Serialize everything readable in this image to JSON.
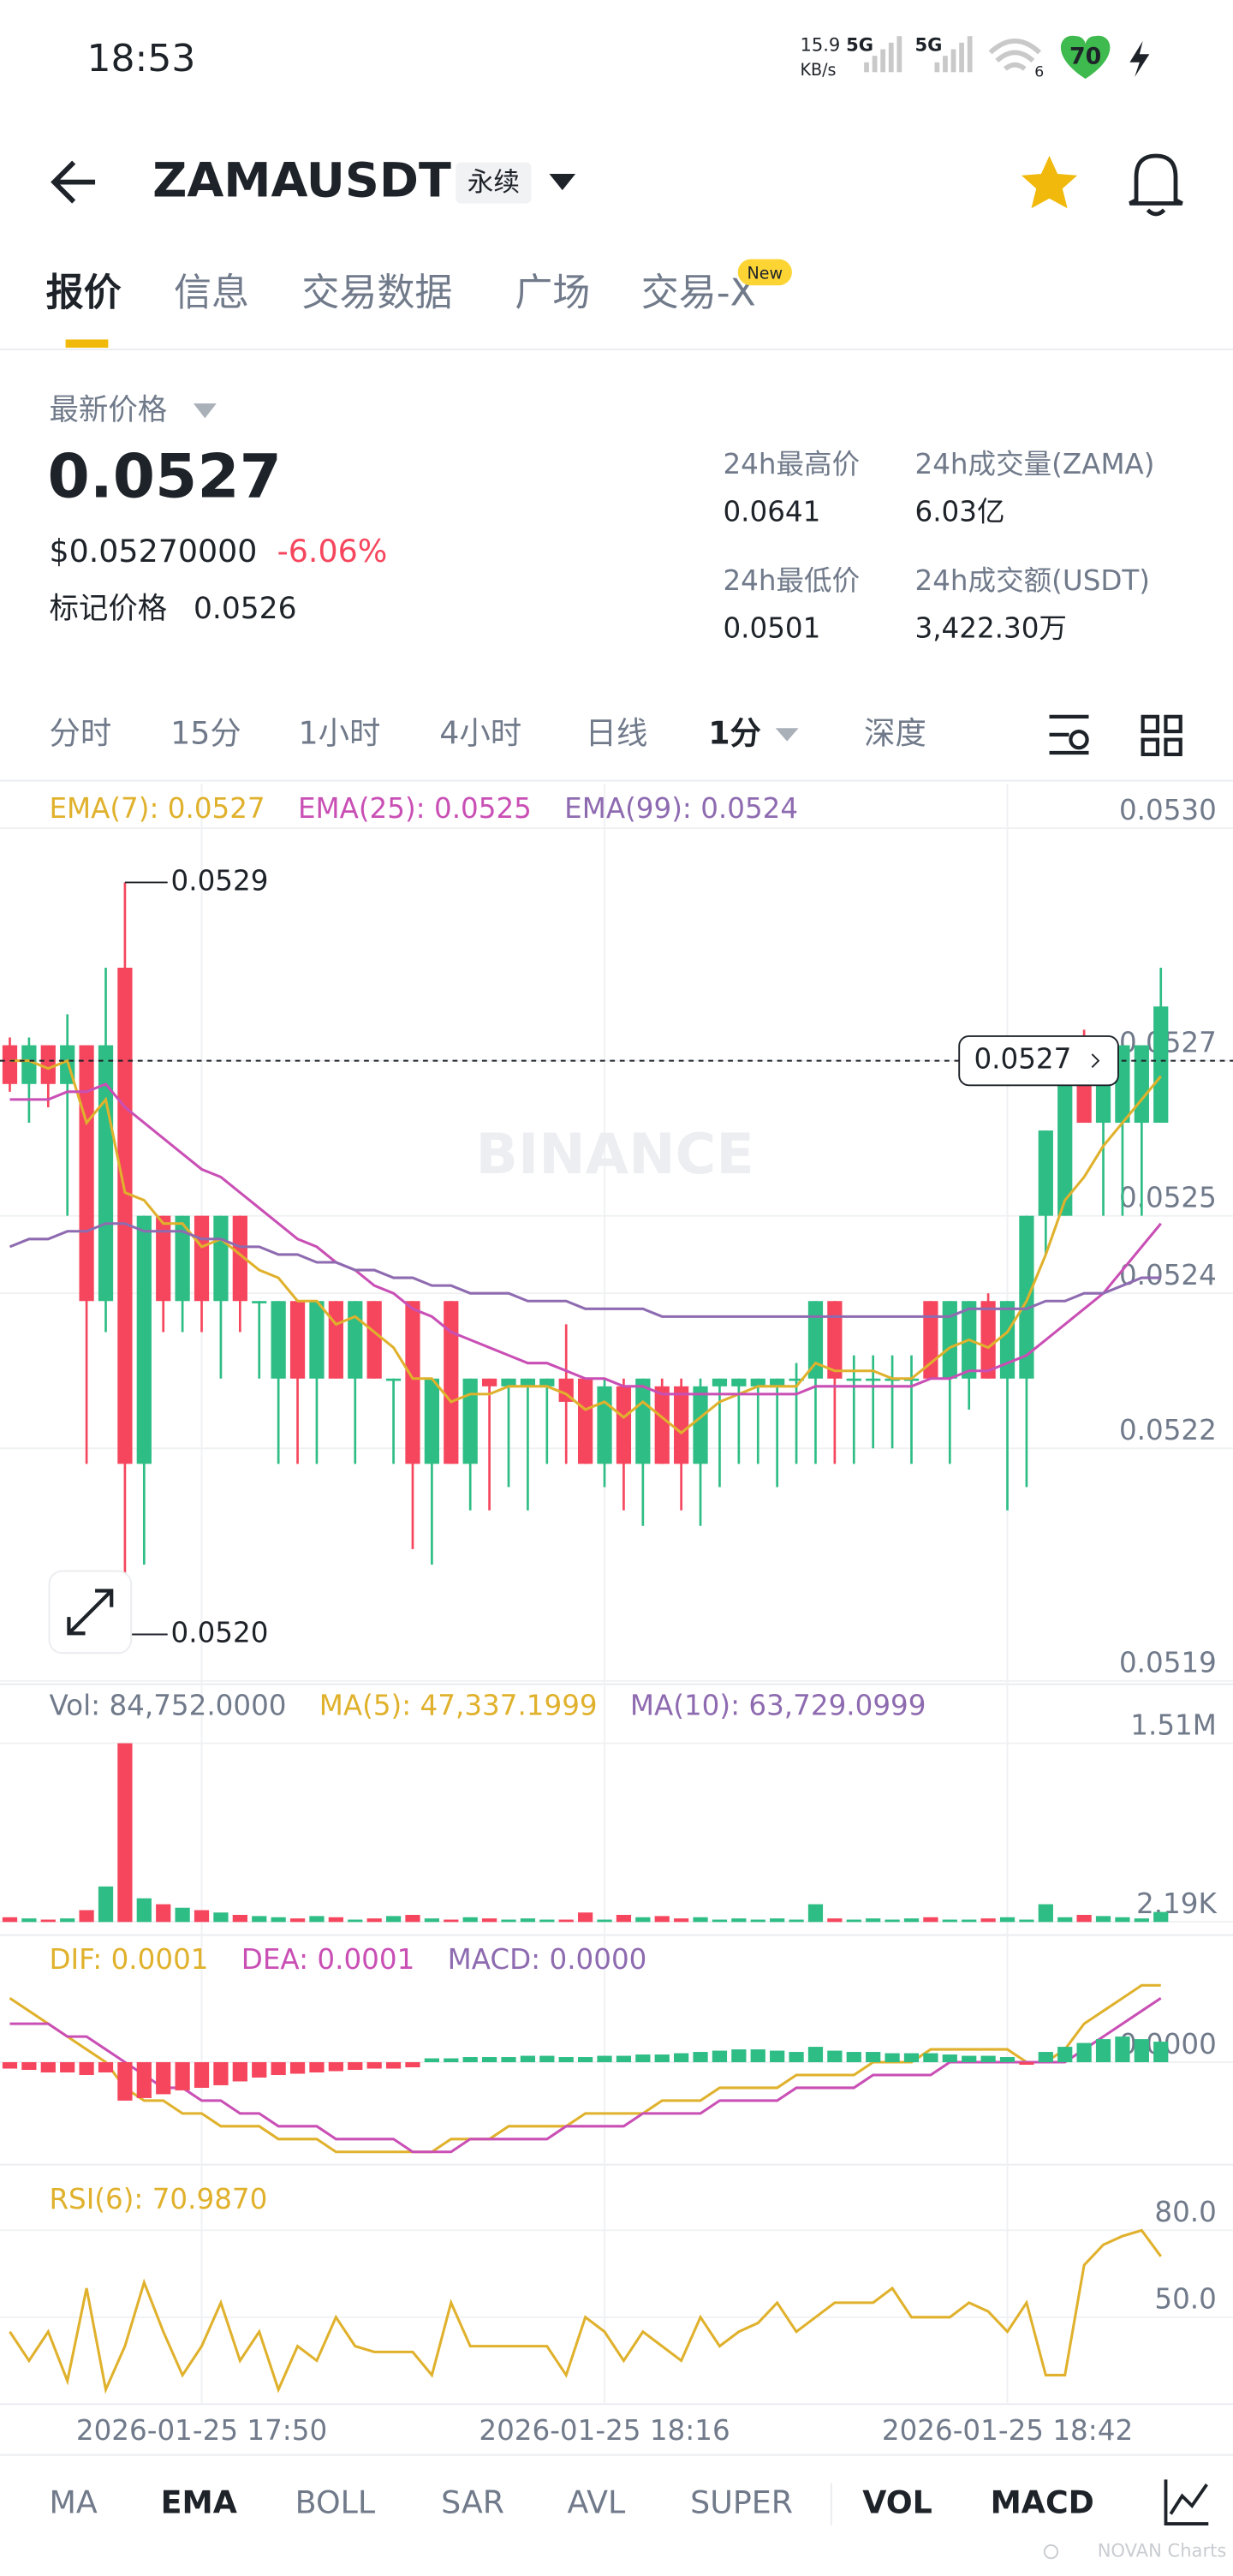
{
  "status_bar": {
    "time": "18:53",
    "net_speed": "15.9",
    "net_unit": "KB/s",
    "signal_1": "5G",
    "signal_2": "5G",
    "wifi": "6",
    "battery": "70"
  },
  "header": {
    "symbol": "ZAMAUSDT",
    "contract": "永续"
  },
  "tabs": [
    "报价",
    "信息",
    "交易数据",
    "广场",
    "交易-X"
  ],
  "tab_badge": "New",
  "price": {
    "label": "最新价格",
    "last": "0.0527",
    "usd": "$0.05270000",
    "change": "-6.06%",
    "mark_label": "标记价格",
    "mark": "0.0526"
  },
  "stats": [
    {
      "label": "24h最高价",
      "value": "0.0641"
    },
    {
      "label": "24h成交量(ZAMA)",
      "value": "6.03亿"
    },
    {
      "label": "24h最低价",
      "value": "0.0501"
    },
    {
      "label": "24h成交额(USDT)",
      "value": "3,422.30万"
    }
  ],
  "intervals": [
    "分时",
    "15分",
    "1小时",
    "4小时",
    "日线",
    "1分",
    "深度"
  ],
  "watermark": "BINANCE",
  "chart_data": [
    {
      "type": "candlestick",
      "up_color": "#2ebd85",
      "down_color": "#f6465d",
      "categories": [
        null,
        null,
        null,
        null,
        null,
        null,
        null,
        null,
        null,
        null,
        "2026-01-25 17:50",
        null,
        null,
        null,
        null,
        null,
        null,
        null,
        null,
        null,
        null,
        null,
        null,
        null,
        null,
        null,
        null,
        null,
        null,
        null,
        null,
        "2026-01-25 18:16",
        null,
        null,
        null,
        null,
        null,
        null,
        null,
        null,
        null,
        null,
        null,
        null,
        null,
        null,
        null,
        null,
        null,
        null,
        null,
        null,
        "2026-01-25 18:42",
        null,
        null,
        null,
        null,
        null,
        null,
        null,
        null
      ],
      "ohlc": [
        [
          0.05272,
          0.05273,
          0.05266,
          0.05267
        ],
        [
          0.05267,
          0.05273,
          0.05262,
          0.05272
        ],
        [
          0.05272,
          0.05272,
          0.05264,
          0.05267
        ],
        [
          0.05267,
          0.05276,
          0.0525,
          0.05272
        ],
        [
          0.05272,
          0.05272,
          0.05218,
          0.05239
        ],
        [
          0.05239,
          0.05282,
          0.05235,
          0.05272
        ],
        [
          0.05282,
          0.05293,
          0.05196,
          0.05218
        ],
        [
          0.05218,
          0.0525,
          0.05205,
          0.0525
        ],
        [
          0.0525,
          0.0525,
          0.05235,
          0.05239
        ],
        [
          0.05239,
          0.0525,
          0.05235,
          0.0525
        ],
        [
          0.0525,
          0.0525,
          0.05235,
          0.05239
        ],
        [
          0.05239,
          0.0525,
          0.05229,
          0.0525
        ],
        [
          0.0525,
          0.0525,
          0.05235,
          0.05239
        ],
        [
          0.05239,
          0.05239,
          0.05229,
          0.05239
        ],
        [
          0.05229,
          0.05239,
          0.05218,
          0.05239
        ],
        [
          0.05239,
          0.05239,
          0.05218,
          0.05229
        ],
        [
          0.05229,
          0.05239,
          0.05218,
          0.05239
        ],
        [
          0.05239,
          0.05239,
          0.05229,
          0.05229
        ],
        [
          0.05229,
          0.05239,
          0.05218,
          0.05239
        ],
        [
          0.05239,
          0.05239,
          0.05229,
          0.05229
        ],
        [
          0.05229,
          0.05229,
          0.05218,
          0.05229
        ],
        [
          0.05239,
          0.05239,
          0.05207,
          0.05218
        ],
        [
          0.05218,
          0.05229,
          0.05205,
          0.05229
        ],
        [
          0.05239,
          0.05239,
          0.05218,
          0.05218
        ],
        [
          0.05218,
          0.05229,
          0.05212,
          0.05229
        ],
        [
          0.05229,
          0.05229,
          0.05212,
          0.05228
        ],
        [
          0.05228,
          0.05229,
          0.05215,
          0.05229
        ],
        [
          0.05228,
          0.05229,
          0.05212,
          0.05229
        ],
        [
          0.05228,
          0.05229,
          0.05218,
          0.05229
        ],
        [
          0.05229,
          0.05236,
          0.05218,
          0.05226
        ],
        [
          0.05229,
          0.05229,
          0.05218,
          0.05218
        ],
        [
          0.05218,
          0.05229,
          0.05215,
          0.05228
        ],
        [
          0.05228,
          0.05229,
          0.05212,
          0.05218
        ],
        [
          0.05218,
          0.05229,
          0.0521,
          0.05229
        ],
        [
          0.05228,
          0.05229,
          0.05218,
          0.05218
        ],
        [
          0.05228,
          0.05229,
          0.05212,
          0.05218
        ],
        [
          0.05218,
          0.05229,
          0.0521,
          0.05228
        ],
        [
          0.05228,
          0.05229,
          0.05215,
          0.05229
        ],
        [
          0.05228,
          0.05229,
          0.05218,
          0.05229
        ],
        [
          0.05228,
          0.05229,
          0.05218,
          0.05229
        ],
        [
          0.05228,
          0.05229,
          0.05215,
          0.05229
        ],
        [
          0.05229,
          0.05231,
          0.05218,
          0.05229
        ],
        [
          0.05229,
          0.05239,
          0.05218,
          0.05239
        ],
        [
          0.05239,
          0.05239,
          0.05218,
          0.05229
        ],
        [
          0.05229,
          0.05232,
          0.05218,
          0.05229
        ],
        [
          0.05229,
          0.05232,
          0.0522,
          0.05229
        ],
        [
          0.05229,
          0.05232,
          0.0522,
          0.05229
        ],
        [
          0.05229,
          0.05232,
          0.05218,
          0.05229
        ],
        [
          0.05239,
          0.05239,
          0.05229,
          0.05229
        ],
        [
          0.05229,
          0.05239,
          0.05218,
          0.05239
        ],
        [
          0.05229,
          0.05239,
          0.05225,
          0.05239
        ],
        [
          0.05239,
          0.0524,
          0.05229,
          0.05229
        ],
        [
          0.05229,
          0.05239,
          0.05212,
          0.05239
        ],
        [
          0.05229,
          0.0525,
          0.05215,
          0.0525
        ],
        [
          0.0525,
          0.05261,
          0.05245,
          0.05261
        ],
        [
          0.0525,
          0.05272,
          0.0525,
          0.05272
        ],
        [
          0.05272,
          0.05274,
          0.05262,
          0.05262
        ],
        [
          0.05262,
          0.05272,
          0.0525,
          0.05272
        ],
        [
          0.05262,
          0.05272,
          0.0525,
          0.05272
        ],
        [
          0.05262,
          0.05272,
          0.0525,
          0.05272
        ],
        [
          0.05262,
          0.05282,
          0.05262,
          0.05277
        ]
      ],
      "series": [
        {
          "name": "EMA(7): 0.0527",
          "color": "#e0b12c",
          "values": [
            0.0527,
            0.0527,
            0.05269,
            0.0527,
            0.05262,
            0.05265,
            0.05253,
            0.05252,
            0.05249,
            0.05249,
            0.05246,
            0.05247,
            0.05245,
            0.05243,
            0.05242,
            0.05239,
            0.05239,
            0.05236,
            0.05237,
            0.05235,
            0.05233,
            0.05229,
            0.05229,
            0.05226,
            0.05227,
            0.05227,
            0.05228,
            0.05228,
            0.05228,
            0.05227,
            0.05225,
            0.05226,
            0.05224,
            0.05226,
            0.05224,
            0.05222,
            0.05224,
            0.05226,
            0.05227,
            0.05228,
            0.05228,
            0.05228,
            0.05231,
            0.0523,
            0.0523,
            0.0523,
            0.05229,
            0.05229,
            0.05231,
            0.05233,
            0.05234,
            0.05233,
            0.05235,
            0.05239,
            0.05245,
            0.05252,
            0.05255,
            0.05259,
            0.05262,
            0.05265,
            0.05268
          ]
        },
        {
          "name": "EMA(25): 0.0525",
          "color": "#c94fb5",
          "values": [
            0.05265,
            0.05265,
            0.05265,
            0.05266,
            0.05266,
            0.05267,
            0.05264,
            0.05262,
            0.0526,
            0.05258,
            0.05256,
            0.05255,
            0.05253,
            0.05251,
            0.05249,
            0.05247,
            0.05246,
            0.05244,
            0.05243,
            0.05241,
            0.0524,
            0.05238,
            0.05237,
            0.05235,
            0.05234,
            0.05233,
            0.05232,
            0.05231,
            0.05231,
            0.0523,
            0.05229,
            0.05229,
            0.05228,
            0.05228,
            0.05227,
            0.05227,
            0.05227,
            0.05227,
            0.05227,
            0.05227,
            0.05227,
            0.05227,
            0.05228,
            0.05228,
            0.05228,
            0.05228,
            0.05228,
            0.05228,
            0.05229,
            0.05229,
            0.0523,
            0.0523,
            0.05231,
            0.05232,
            0.05234,
            0.05236,
            0.05238,
            0.0524,
            0.05243,
            0.05246,
            0.05249
          ]
        },
        {
          "name": "EMA(99): 0.0524",
          "color": "#8e6bb0",
          "values": [
            0.05246,
            0.05247,
            0.05247,
            0.05248,
            0.05248,
            0.05249,
            0.05249,
            0.05248,
            0.05248,
            0.05248,
            0.05247,
            0.05247,
            0.05246,
            0.05246,
            0.05245,
            0.05245,
            0.05244,
            0.05244,
            0.05243,
            0.05243,
            0.05242,
            0.05242,
            0.05241,
            0.05241,
            0.0524,
            0.0524,
            0.0524,
            0.05239,
            0.05239,
            0.05239,
            0.05238,
            0.05238,
            0.05238,
            0.05238,
            0.05237,
            0.05237,
            0.05237,
            0.05237,
            0.05237,
            0.05237,
            0.05237,
            0.05237,
            0.05237,
            0.05237,
            0.05237,
            0.05237,
            0.05237,
            0.05237,
            0.05237,
            0.05237,
            0.05238,
            0.05238,
            0.05238,
            0.05238,
            0.05239,
            0.05239,
            0.0524,
            0.0524,
            0.05241,
            0.05242,
            0.05242
          ]
        }
      ],
      "ylim": [
        0.0519,
        0.053
      ],
      "yticks": [
        {
          "value": 0.053,
          "label": "0.0530"
        },
        0.0527,
        0.0525,
        0.0524,
        0.0522,
        0.0519
      ],
      "high_label": "0.0529",
      "low_label": "0.0520",
      "current_price": 0.0527,
      "grid": true
    },
    {
      "type": "bar",
      "legend": [
        {
          "text": "Vol: 84,752.0000",
          "color": "#707a8a"
        },
        {
          "text": "MA(5): 47,337.1999",
          "color": "#e0b12c"
        },
        {
          "text": "MA(10): 63,729.0999",
          "color": "#8e6bb0"
        }
      ],
      "values": [
        40000,
        30000,
        20000,
        30000,
        100000,
        300000,
        1510000,
        200000,
        150000,
        120000,
        100000,
        80000,
        60000,
        50000,
        40000,
        30000,
        50000,
        40000,
        20000,
        30000,
        50000,
        60000,
        30000,
        20000,
        40000,
        30000,
        20000,
        30000,
        20000,
        20000,
        80000,
        20000,
        60000,
        40000,
        50000,
        30000,
        40000,
        20000,
        30000,
        20000,
        30000,
        20000,
        150000,
        30000,
        20000,
        30000,
        20000,
        30000,
        40000,
        20000,
        20000,
        30000,
        40000,
        20000,
        150000,
        40000,
        60000,
        50000,
        40000,
        30000,
        84752
      ],
      "ylim": [
        0,
        1510000
      ],
      "yticks": [
        {
          "value": 1510000,
          "label": "1.51M"
        },
        {
          "value": 2190,
          "label": "2.19K"
        }
      ]
    },
    {
      "type": "macd",
      "up_color": "#2ebd85",
      "down_color": "#f6465d",
      "series": [
        {
          "name": "DIF: 0.0001",
          "color": "#e0b12c",
          "values": [
            5e-05,
            4e-05,
            3e-05,
            2e-05,
            1e-05,
            0,
            -2e-05,
            -3e-05,
            -3e-05,
            -4e-05,
            -4e-05,
            -5e-05,
            -5e-05,
            -5e-05,
            -6e-05,
            -6e-05,
            -6e-05,
            -7e-05,
            -7e-05,
            -7e-05,
            -7e-05,
            -7e-05,
            -7e-05,
            -6e-05,
            -6e-05,
            -6e-05,
            -5e-05,
            -5e-05,
            -5e-05,
            -5e-05,
            -4e-05,
            -4e-05,
            -4e-05,
            -4e-05,
            -3e-05,
            -3e-05,
            -3e-05,
            -2e-05,
            -2e-05,
            -2e-05,
            -2e-05,
            -1e-05,
            -1e-05,
            -1e-05,
            -1e-05,
            0,
            0,
            0,
            1e-05,
            1e-05,
            1e-05,
            1e-05,
            1e-05,
            0,
            0,
            1e-05,
            3e-05,
            4e-05,
            5e-05,
            6e-05,
            6e-05
          ]
        },
        {
          "name": "DEA: 0.0001",
          "color": "#c94fb5",
          "values": [
            3e-05,
            3e-05,
            3e-05,
            2e-05,
            2e-05,
            1e-05,
            0,
            -1e-05,
            -2e-05,
            -2e-05,
            -3e-05,
            -3e-05,
            -4e-05,
            -4e-05,
            -5e-05,
            -5e-05,
            -5e-05,
            -6e-05,
            -6e-05,
            -6e-05,
            -6e-05,
            -7e-05,
            -7e-05,
            -7e-05,
            -6e-05,
            -6e-05,
            -6e-05,
            -6e-05,
            -6e-05,
            -5e-05,
            -5e-05,
            -5e-05,
            -5e-05,
            -4e-05,
            -4e-05,
            -4e-05,
            -4e-05,
            -3e-05,
            -3e-05,
            -3e-05,
            -3e-05,
            -2e-05,
            -2e-05,
            -2e-05,
            -2e-05,
            -1e-05,
            -1e-05,
            -1e-05,
            -1e-05,
            0,
            0,
            0,
            0,
            0,
            0,
            0,
            1e-05,
            2e-05,
            3e-05,
            4e-05,
            5e-05
          ]
        },
        {
          "name": "MACD: 0.0000",
          "color": "#8e6bb0",
          "bars": true,
          "values": [
            -5e-06,
            -6e-06,
            -8e-06,
            -8e-06,
            -1e-05,
            -8e-06,
            -3e-05,
            -2.8e-05,
            -2.5e-05,
            -2.2e-05,
            -2e-05,
            -1.8e-05,
            -1.5e-05,
            -1.2e-05,
            -1e-05,
            -9e-06,
            -8e-06,
            -7e-06,
            -6e-06,
            -5e-06,
            -5e-06,
            -4e-06,
            3e-06,
            3e-06,
            4e-06,
            4e-06,
            4e-06,
            5e-06,
            5e-06,
            4e-06,
            4e-06,
            5e-06,
            5e-06,
            6e-06,
            6e-06,
            7e-06,
            8e-06,
            9e-06,
            1e-05,
            1e-05,
            9e-06,
            8e-06,
            1.2e-05,
            9e-06,
            8e-06,
            8e-06,
            7e-06,
            7e-06,
            7e-06,
            6e-06,
            5e-06,
            5e-06,
            4e-06,
            -2e-06,
            8e-06,
            1.2e-05,
            1.5e-05,
            1.8e-05,
            2e-05,
            1.8e-05,
            1.6e-05
          ]
        }
      ],
      "ylim": [
        -8e-05,
        8e-05
      ],
      "yticks": [
        {
          "value": 0,
          "label": "0.0000"
        }
      ]
    },
    {
      "type": "line",
      "series": [
        {
          "name": "RSI(6): 70.9870",
          "color": "#e0b12c",
          "values": [
            45,
            35,
            45,
            28,
            60,
            25,
            40,
            62,
            45,
            30,
            40,
            55,
            35,
            45,
            25,
            40,
            35,
            50,
            40,
            38,
            38,
            38,
            30,
            55,
            40,
            40,
            40,
            40,
            40,
            30,
            50,
            45,
            35,
            45,
            40,
            35,
            50,
            40,
            45,
            48,
            55,
            45,
            50,
            55,
            55,
            55,
            60,
            50,
            50,
            50,
            55,
            52,
            45,
            55,
            30,
            30,
            68,
            75,
            78,
            80,
            70.987
          ]
        }
      ],
      "ylim": [
        20,
        97
      ],
      "yticks": [
        {
          "value": 80,
          "label": "80.0"
        },
        {
          "value": 50,
          "label": "50.0"
        }
      ]
    }
  ],
  "indicators": [
    "MA",
    "EMA",
    "BOLL",
    "SAR",
    "AVL",
    "SUPER",
    "VOL",
    "MACD"
  ],
  "footer": "NOVAN Charts"
}
